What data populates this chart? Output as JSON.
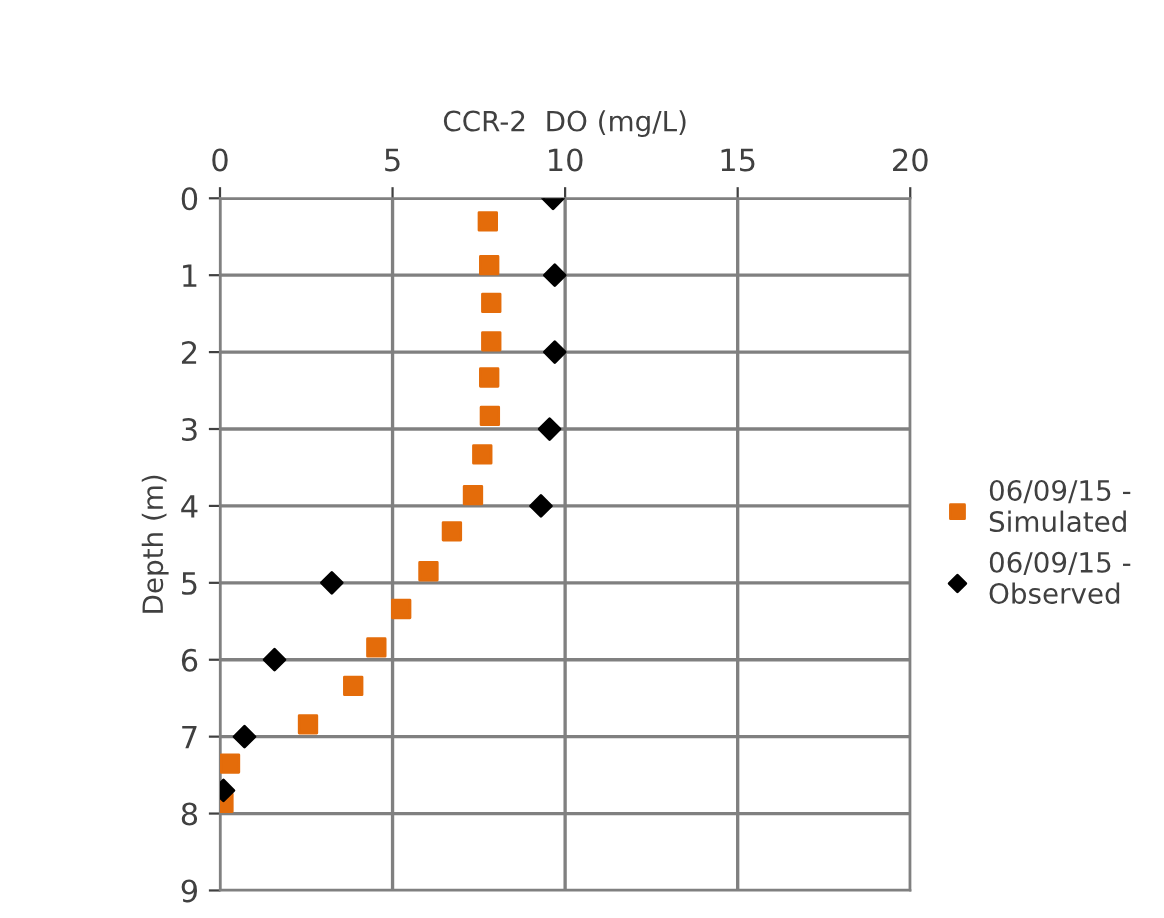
{
  "chart_data": {
    "type": "scatter",
    "xlabel": "CCR-2  DO (mg/L)",
    "ylabel": "Depth (m)",
    "xlim": [
      0,
      20
    ],
    "xticks": [
      0,
      5,
      10,
      15,
      20
    ],
    "ylim": [
      9,
      0
    ],
    "yticks": [
      0,
      1,
      2,
      3,
      4,
      5,
      6,
      7,
      8,
      9
    ],
    "grid": true,
    "legend": "right",
    "series": [
      {
        "name": "06/09/15 - Simulated",
        "color": "#e46c0a",
        "marker": "square",
        "x": [
          7.76,
          7.8,
          7.86,
          7.86,
          7.8,
          7.82,
          7.6,
          7.33,
          6.72,
          6.04,
          5.25,
          4.53,
          3.86,
          2.55,
          0.29,
          0.1
        ],
        "values": [
          0.3,
          0.87,
          1.36,
          1.86,
          2.33,
          2.83,
          3.33,
          3.86,
          4.33,
          4.85,
          5.34,
          5.84,
          6.34,
          6.84,
          7.35,
          7.86
        ]
      },
      {
        "name": "06/09/15 - Observed",
        "color": "#000000",
        "marker": "diamond",
        "x": [
          9.65,
          9.7,
          9.7,
          9.55,
          9.3,
          3.24,
          1.58,
          0.71,
          0.1
        ],
        "values": [
          0,
          1,
          2,
          3,
          4,
          5,
          6,
          7,
          7.7
        ]
      }
    ]
  }
}
